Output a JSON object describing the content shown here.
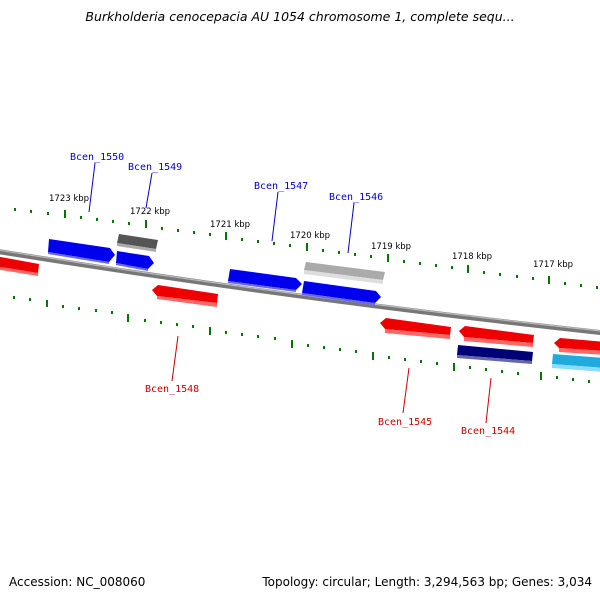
{
  "title": "Burkholderia cenocepacia AU 1054 chromosome 1, complete sequ...",
  "footer": {
    "accession": "Accession: NC_008060",
    "summary": "Topology: circular; Length: 3,294,563 bp; Genes: 3,034"
  },
  "colors": {
    "forward_gene": "#0000ee",
    "reverse_gene": "#ee0000",
    "pseudo_gene": "#666666",
    "other_gene": "#bbbbbb",
    "dark_gene": "#000077",
    "cyan_gene": "#22aadd",
    "axis": "#888888",
    "tick": "#007700"
  },
  "ticks": [
    {
      "label": "1723 kbp"
    },
    {
      "label": "1722 kbp"
    },
    {
      "label": "1721 kbp"
    },
    {
      "label": "1720 kbp"
    },
    {
      "label": "1719 kbp"
    },
    {
      "label": "1718 kbp"
    },
    {
      "label": "1717 kbp"
    }
  ],
  "genes": [
    {
      "name": "Bcen_1550",
      "strand": "forward"
    },
    {
      "name": "Bcen_1549",
      "strand": "forward"
    },
    {
      "name": "Bcen_1547",
      "strand": "forward"
    },
    {
      "name": "Bcen_1546",
      "strand": "forward"
    },
    {
      "name": "Bcen_1548",
      "strand": "reverse"
    },
    {
      "name": "Bcen_1545",
      "strand": "reverse"
    },
    {
      "name": "Bcen_1544",
      "strand": "reverse"
    }
  ]
}
